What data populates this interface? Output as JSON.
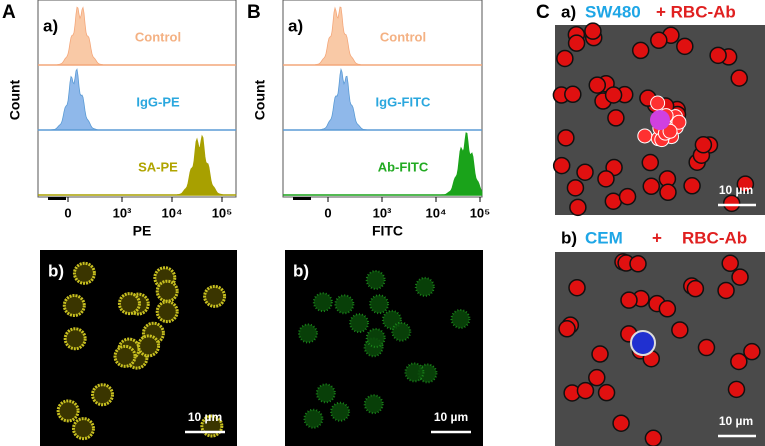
{
  "panels": [
    {
      "label": "A",
      "histogram": {
        "sub_label": "a)",
        "y_label": "Count",
        "x_label": "PE",
        "x_ticks": [
          "0",
          "10³",
          "10⁴",
          "10⁵"
        ],
        "rows": [
          {
            "name": "Control"
          },
          {
            "name": "IgG-PE"
          },
          {
            "name": "SA-PE"
          }
        ]
      },
      "image": {
        "sub_label": "b)",
        "scale_bar": "10 µm"
      }
    },
    {
      "label": "B",
      "histogram": {
        "sub_label": "a)",
        "y_label": "Count",
        "x_label": "FITC",
        "x_ticks": [
          "0",
          "10³",
          "10⁴",
          "10⁵"
        ],
        "rows": [
          {
            "name": "Control"
          },
          {
            "name": "IgG-FITC"
          },
          {
            "name": "Ab-FITC"
          }
        ]
      },
      "image": {
        "sub_label": "b)",
        "scale_bar": "10 µm"
      }
    },
    {
      "label": "C",
      "images": [
        {
          "sub_label": "a)",
          "cell_line": "SW480",
          "reagent": "+ RBC-Ab",
          "scale_bar": "10 µm"
        },
        {
          "sub_label": "b)",
          "cell_line": "CEM",
          "plus": "+",
          "reagent": "RBC-Ab",
          "scale_bar": "10 µm"
        }
      ]
    }
  ]
}
